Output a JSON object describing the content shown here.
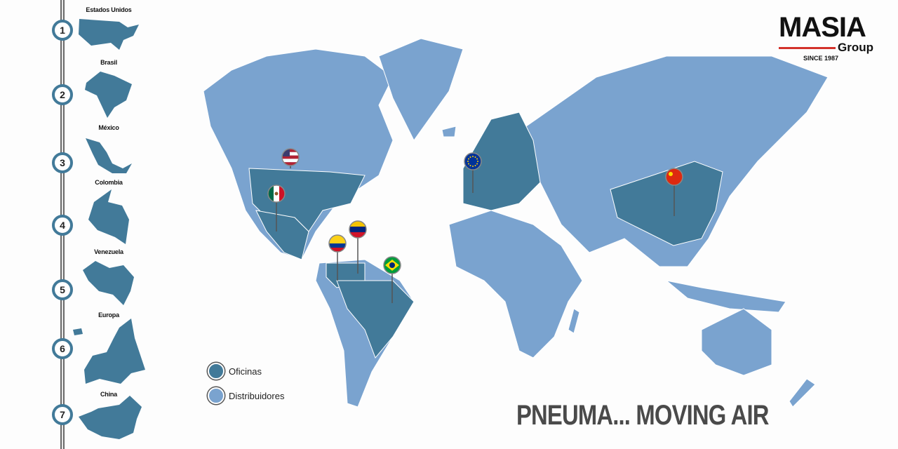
{
  "timeline": [
    {
      "number": "1",
      "country": "Estados Unidos"
    },
    {
      "number": "2",
      "country": "Brasil"
    },
    {
      "number": "3",
      "country": "México"
    },
    {
      "number": "4",
      "country": "Colombia"
    },
    {
      "number": "5",
      "country": "Venezuela"
    },
    {
      "number": "6",
      "country": "Europa"
    },
    {
      "number": "7",
      "country": "China"
    }
  ],
  "legend": {
    "offices": "Oficinas",
    "distributors": "Distribuidores"
  },
  "colors": {
    "offices": "#427a99",
    "distributors": "#7aa3cf",
    "accent": "#d3322b"
  },
  "pins": [
    {
      "flag": "usa-flag-icon",
      "country": "Estados Unidos"
    },
    {
      "flag": "mexico-flag-icon",
      "country": "México"
    },
    {
      "flag": "colombia-flag-icon",
      "country": "Colombia"
    },
    {
      "flag": "venezuela-flag-icon",
      "country": "Venezuela"
    },
    {
      "flag": "brazil-flag-icon",
      "country": "Brasil"
    },
    {
      "flag": "eu-flag-icon",
      "country": "Europa"
    },
    {
      "flag": "china-flag-icon",
      "country": "China"
    }
  ],
  "slogan": "PNEUMA... MOVING AIR",
  "logo": {
    "name": "MASIA",
    "sub": "Group",
    "since": "SINCE 1987"
  }
}
